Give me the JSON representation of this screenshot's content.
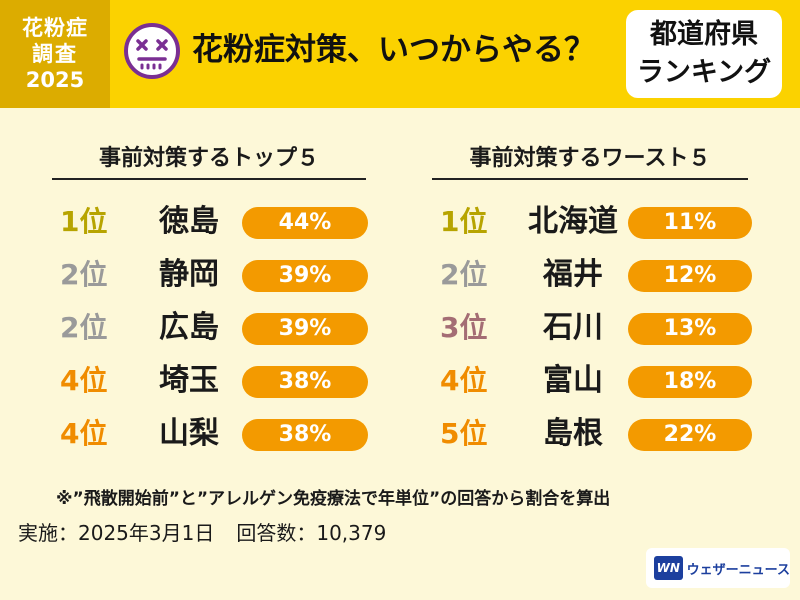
{
  "header": {
    "badge": [
      "花粉症",
      "調査",
      "2025"
    ],
    "title": "花粉症対策、いつからやる？",
    "ranking_badge": [
      "都道府県",
      "ランキング"
    ]
  },
  "colors": {
    "header_bg": "#fbd200",
    "badge_bg": "#dcac00",
    "page_bg": "#fdf8d8",
    "pill": "#f39a00",
    "rank_gold": "#b7a400",
    "rank_silver": "#9a9a9a",
    "rank_bronze": "#a46d74",
    "rank_other": "#f08c00"
  },
  "chart_data": [
    {
      "type": "table",
      "title": "事前対策するトップ５",
      "rows": [
        {
          "rank": "1位",
          "prefecture": "徳島",
          "value": 44,
          "label": "44%",
          "medal": "gold"
        },
        {
          "rank": "2位",
          "prefecture": "静岡",
          "value": 39,
          "label": "39%",
          "medal": "silver"
        },
        {
          "rank": "2位",
          "prefecture": "広島",
          "value": 39,
          "label": "39%",
          "medal": "silver"
        },
        {
          "rank": "4位",
          "prefecture": "埼玉",
          "value": 38,
          "label": "38%",
          "medal": "other"
        },
        {
          "rank": "4位",
          "prefecture": "山梨",
          "value": 38,
          "label": "38%",
          "medal": "other"
        }
      ]
    },
    {
      "type": "table",
      "title": "事前対策するワースト５",
      "rows": [
        {
          "rank": "1位",
          "prefecture": "北海道",
          "value": 11,
          "label": "11%",
          "medal": "gold"
        },
        {
          "rank": "2位",
          "prefecture": "福井",
          "value": 12,
          "label": "12%",
          "medal": "silver"
        },
        {
          "rank": "3位",
          "prefecture": "石川",
          "value": 13,
          "label": "13%",
          "medal": "bronze"
        },
        {
          "rank": "4位",
          "prefecture": "富山",
          "value": 18,
          "label": "18%",
          "medal": "other"
        },
        {
          "rank": "5位",
          "prefecture": "島根",
          "value": 22,
          "label": "22%",
          "medal": "other"
        }
      ]
    }
  ],
  "note": "※”飛散開始前”と”アレルゲン免疫療法で年単位”の回答から割合を算出",
  "footer": {
    "date": "実施：2025年3月1日",
    "responses": "回答数：10,379"
  },
  "logo": {
    "mark": "WN",
    "text": "ウェザーニュース"
  }
}
